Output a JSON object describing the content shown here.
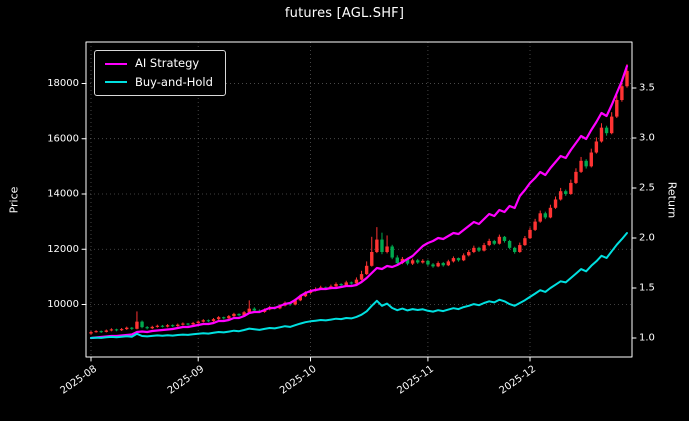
{
  "chart": {
    "title": "futures [AGL.SHF]",
    "ylabel_left": "Price",
    "ylabel_right": "Return",
    "legend": [
      {
        "label": "AI Strategy",
        "color": "#ff00ff"
      },
      {
        "label": "Buy-and-Hold",
        "color": "#00e0e0"
      }
    ],
    "background": "#000000",
    "text_color": "#ffffff",
    "grid_color": "#9a9a9a"
  },
  "chart_data": {
    "type": "candlestick+line",
    "title": "futures [AGL.SHF]",
    "legend_position": "upper left",
    "grid": "dotted",
    "x_tick_labels": [
      "2025-08",
      "2025-09",
      "2025-10",
      "2025-11",
      "2025-12"
    ],
    "x_tick_indices": [
      0,
      21,
      43,
      66,
      86
    ],
    "price_axis": {
      "label": "Price",
      "ticks": [
        10000,
        12000,
        14000,
        16000,
        18000
      ],
      "tick_labels": [
        "10000",
        "12000",
        "14000",
        "16000",
        "18000"
      ],
      "range": [
        8100,
        19500
      ]
    },
    "return_axis": {
      "label": "Return",
      "ticks": [
        1.0,
        1.5,
        2.0,
        2.5,
        3.0,
        3.5
      ],
      "tick_labels": [
        "1.0",
        "1.5",
        "2.0",
        "2.5",
        "3.0",
        "3.5"
      ],
      "range": [
        0.81,
        3.96
      ]
    },
    "candles": {
      "up_color": "#ff3333",
      "down_color": "#00a94f",
      "order": "open,high,low,close",
      "ohlc": [
        [
          8950,
          9040,
          8910,
          9000
        ],
        [
          9000,
          9070,
          8980,
          9035
        ],
        [
          9035,
          9060,
          8970,
          9010
        ],
        [
          9010,
          9095,
          8990,
          9060
        ],
        [
          9060,
          9140,
          9030,
          9100
        ],
        [
          9100,
          9125,
          9030,
          9070
        ],
        [
          9070,
          9150,
          9040,
          9110
        ],
        [
          9110,
          9200,
          9080,
          9160
        ],
        [
          9160,
          9185,
          9080,
          9120
        ],
        [
          9120,
          9750,
          9100,
          9380
        ],
        [
          9380,
          9420,
          9140,
          9180
        ],
        [
          9180,
          9220,
          9100,
          9140
        ],
        [
          9140,
          9230,
          9110,
          9190
        ],
        [
          9190,
          9270,
          9160,
          9230
        ],
        [
          9230,
          9260,
          9170,
          9200
        ],
        [
          9200,
          9290,
          9170,
          9250
        ],
        [
          9250,
          9280,
          9180,
          9220
        ],
        [
          9220,
          9310,
          9190,
          9270
        ],
        [
          9270,
          9350,
          9240,
          9310
        ],
        [
          9310,
          9330,
          9240,
          9280
        ],
        [
          9280,
          9370,
          9250,
          9330
        ],
        [
          9330,
          9420,
          9300,
          9380
        ],
        [
          9380,
          9470,
          9350,
          9430
        ],
        [
          9430,
          9460,
          9360,
          9400
        ],
        [
          9400,
          9510,
          9370,
          9470
        ],
        [
          9470,
          9580,
          9440,
          9540
        ],
        [
          9540,
          9560,
          9460,
          9500
        ],
        [
          9500,
          9620,
          9470,
          9580
        ],
        [
          9580,
          9700,
          9550,
          9660
        ],
        [
          9660,
          9680,
          9570,
          9610
        ],
        [
          9610,
          9760,
          9580,
          9720
        ],
        [
          9720,
          10150,
          9700,
          9850
        ],
        [
          9850,
          9900,
          9740,
          9780
        ],
        [
          9780,
          9820,
          9690,
          9730
        ],
        [
          9730,
          9860,
          9700,
          9820
        ],
        [
          9820,
          9950,
          9790,
          9900
        ],
        [
          9900,
          9930,
          9820,
          9860
        ],
        [
          9860,
          10010,
          9830,
          9960
        ],
        [
          9960,
          10110,
          9930,
          10060
        ],
        [
          10060,
          10080,
          9950,
          10000
        ],
        [
          10000,
          10210,
          9970,
          10150
        ],
        [
          10150,
          10360,
          10120,
          10300
        ],
        [
          10300,
          10480,
          10270,
          10420
        ],
        [
          10420,
          10560,
          10390,
          10500
        ],
        [
          10500,
          10620,
          10470,
          10560
        ],
        [
          10560,
          10680,
          10530,
          10620
        ],
        [
          10620,
          10650,
          10540,
          10580
        ],
        [
          10580,
          10720,
          10550,
          10660
        ],
        [
          10660,
          10800,
          10630,
          10740
        ],
        [
          10740,
          10770,
          10660,
          10700
        ],
        [
          10700,
          10860,
          10670,
          10800
        ],
        [
          10800,
          10830,
          10720,
          10760
        ],
        [
          10760,
          10980,
          10730,
          10900
        ],
        [
          10900,
          11220,
          10870,
          11100
        ],
        [
          11100,
          11560,
          11070,
          11400
        ],
        [
          11400,
          12450,
          11370,
          11900
        ],
        [
          11900,
          12800,
          11860,
          12350
        ],
        [
          12350,
          12600,
          11820,
          11900
        ],
        [
          11900,
          12500,
          11850,
          12100
        ],
        [
          12100,
          12160,
          11640,
          11700
        ],
        [
          11700,
          11780,
          11440,
          11500
        ],
        [
          11500,
          11720,
          11460,
          11650
        ],
        [
          11650,
          11700,
          11420,
          11480
        ],
        [
          11480,
          11660,
          11430,
          11600
        ],
        [
          11600,
          11650,
          11470,
          11520
        ],
        [
          11520,
          11640,
          11480,
          11580
        ],
        [
          11580,
          11620,
          11400,
          11450
        ],
        [
          11450,
          11500,
          11330,
          11380
        ],
        [
          11380,
          11560,
          11350,
          11500
        ],
        [
          11500,
          11540,
          11370,
          11420
        ],
        [
          11420,
          11620,
          11390,
          11560
        ],
        [
          11560,
          11740,
          11520,
          11680
        ],
        [
          11680,
          11700,
          11550,
          11600
        ],
        [
          11600,
          11850,
          11570,
          11780
        ],
        [
          11780,
          11970,
          11740,
          11900
        ],
        [
          11900,
          12130,
          11860,
          12050
        ],
        [
          12050,
          12090,
          11900,
          11950
        ],
        [
          11950,
          12230,
          11920,
          12150
        ],
        [
          12150,
          12380,
          12110,
          12300
        ],
        [
          12300,
          12340,
          12150,
          12200
        ],
        [
          12200,
          12530,
          12170,
          12450
        ],
        [
          12450,
          12480,
          12240,
          12300
        ],
        [
          12300,
          12340,
          12000,
          12050
        ],
        [
          12050,
          12090,
          11840,
          11900
        ],
        [
          11900,
          12240,
          11870,
          12150
        ],
        [
          12150,
          12480,
          12120,
          12400
        ],
        [
          12400,
          12790,
          12370,
          12700
        ],
        [
          12700,
          13100,
          12660,
          13000
        ],
        [
          13000,
          13400,
          12960,
          13300
        ],
        [
          13300,
          13360,
          13090,
          13150
        ],
        [
          13150,
          13610,
          13120,
          13500
        ],
        [
          13500,
          13910,
          13460,
          13800
        ],
        [
          13800,
          14220,
          13760,
          14100
        ],
        [
          14100,
          14160,
          13930,
          14000
        ],
        [
          14000,
          14520,
          13970,
          14400
        ],
        [
          14400,
          14930,
          14360,
          14800
        ],
        [
          14800,
          15340,
          14760,
          15200
        ],
        [
          15200,
          15260,
          14920,
          15000
        ],
        [
          15000,
          15640,
          14960,
          15500
        ],
        [
          15500,
          16050,
          15460,
          15900
        ],
        [
          15900,
          16560,
          15860,
          16400
        ],
        [
          16400,
          16470,
          16110,
          16200
        ],
        [
          16200,
          16960,
          16160,
          16800
        ],
        [
          16800,
          17570,
          16750,
          17400
        ],
        [
          17400,
          18080,
          17340,
          17900
        ],
        [
          17900,
          18700,
          17850,
          18450
        ]
      ]
    },
    "series": [
      {
        "name": "AI Strategy",
        "axis": "return",
        "color": "#ff00ff",
        "values": [
          1.0,
          1.005,
          1.01,
          1.015,
          1.02,
          1.02,
          1.025,
          1.03,
          1.035,
          1.06,
          1.065,
          1.06,
          1.07,
          1.075,
          1.08,
          1.085,
          1.09,
          1.1,
          1.11,
          1.11,
          1.12,
          1.13,
          1.14,
          1.14,
          1.15,
          1.17,
          1.17,
          1.18,
          1.2,
          1.2,
          1.22,
          1.25,
          1.26,
          1.26,
          1.28,
          1.3,
          1.3,
          1.32,
          1.34,
          1.35,
          1.38,
          1.42,
          1.45,
          1.47,
          1.48,
          1.49,
          1.49,
          1.5,
          1.5,
          1.51,
          1.52,
          1.52,
          1.53,
          1.56,
          1.6,
          1.65,
          1.7,
          1.69,
          1.72,
          1.71,
          1.73,
          1.76,
          1.79,
          1.82,
          1.87,
          1.92,
          1.95,
          1.97,
          2.0,
          1.99,
          2.02,
          2.05,
          2.04,
          2.08,
          2.12,
          2.16,
          2.14,
          2.19,
          2.24,
          2.22,
          2.28,
          2.26,
          2.32,
          2.3,
          2.42,
          2.48,
          2.55,
          2.6,
          2.66,
          2.63,
          2.7,
          2.76,
          2.82,
          2.8,
          2.88,
          2.95,
          3.02,
          2.99,
          3.08,
          3.16,
          3.25,
          3.22,
          3.33,
          3.45,
          3.57,
          3.72
        ]
      },
      {
        "name": "Buy-and-Hold",
        "axis": "return",
        "color": "#00e0e0",
        "values": [
          1.0,
          1.004,
          1.001,
          1.007,
          1.011,
          1.008,
          1.012,
          1.018,
          1.013,
          1.042,
          1.02,
          1.016,
          1.021,
          1.026,
          1.022,
          1.028,
          1.024,
          1.03,
          1.034,
          1.031,
          1.037,
          1.042,
          1.048,
          1.044,
          1.052,
          1.06,
          1.056,
          1.064,
          1.073,
          1.068,
          1.08,
          1.094,
          1.087,
          1.081,
          1.091,
          1.1,
          1.096,
          1.107,
          1.118,
          1.111,
          1.128,
          1.144,
          1.158,
          1.167,
          1.173,
          1.18,
          1.176,
          1.184,
          1.193,
          1.189,
          1.2,
          1.196,
          1.211,
          1.233,
          1.267,
          1.322,
          1.372,
          1.322,
          1.344,
          1.3,
          1.278,
          1.294,
          1.276,
          1.289,
          1.28,
          1.287,
          1.272,
          1.264,
          1.278,
          1.269,
          1.284,
          1.298,
          1.289,
          1.309,
          1.322,
          1.339,
          1.328,
          1.35,
          1.367,
          1.356,
          1.383,
          1.367,
          1.339,
          1.322,
          1.35,
          1.378,
          1.411,
          1.444,
          1.478,
          1.461,
          1.5,
          1.533,
          1.567,
          1.556,
          1.6,
          1.644,
          1.689,
          1.667,
          1.722,
          1.767,
          1.822,
          1.8,
          1.867,
          1.933,
          1.989,
          2.05
        ]
      }
    ]
  }
}
